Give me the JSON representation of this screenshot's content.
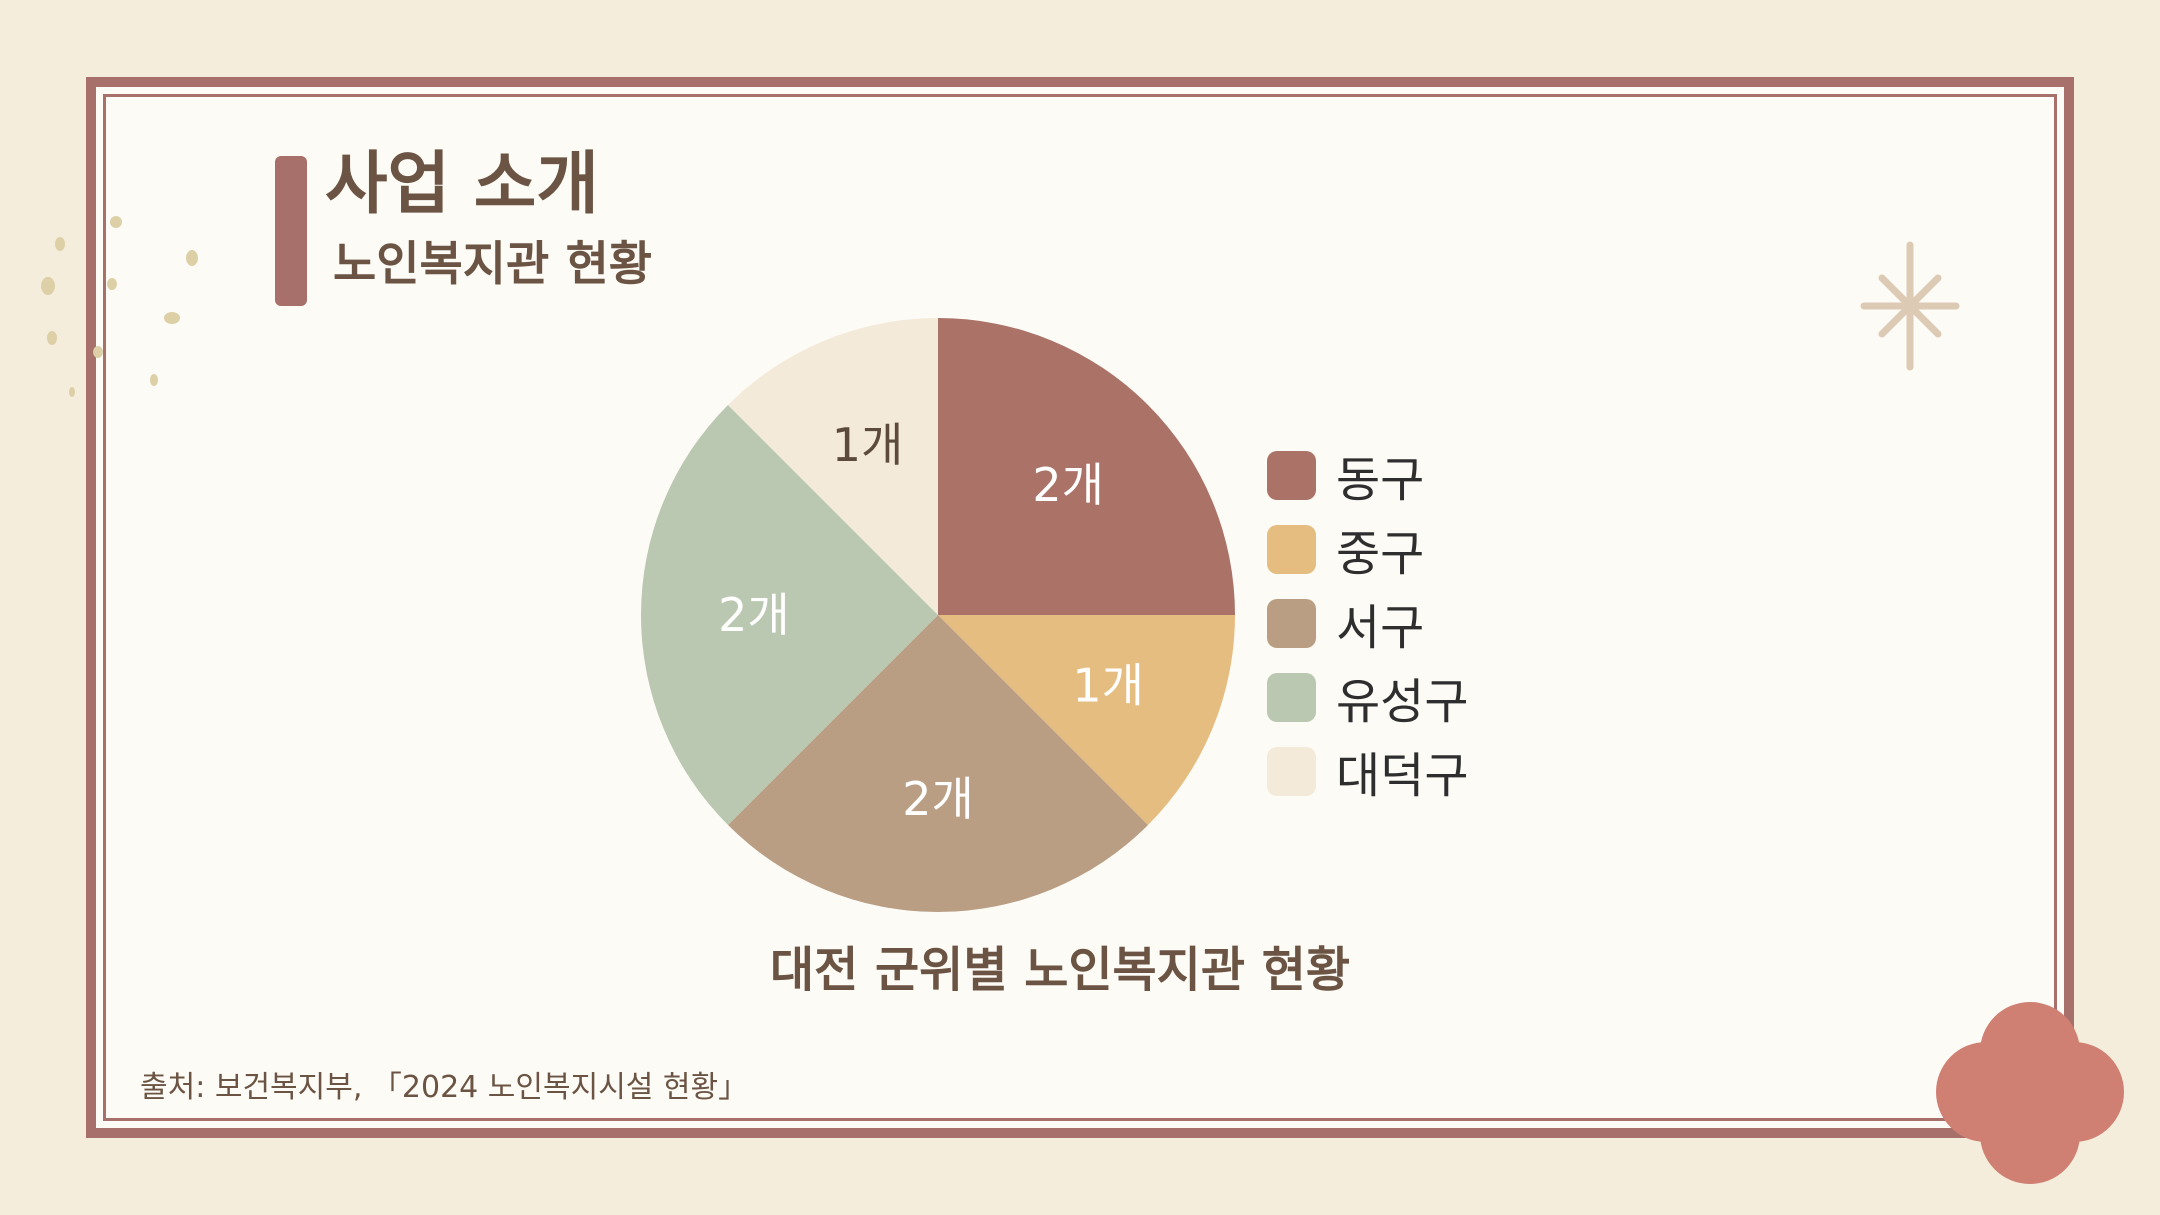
{
  "header": {
    "title": "사업 소개",
    "subtitle": "노인복지관 현황"
  },
  "source_text": "출처: 보건복지부, 「2024 노인복지시설 현황」",
  "colors": {
    "background": "#F5EDDC",
    "card": "#FDFBF6",
    "frame": "#A8706A",
    "text": "#6B5443",
    "flower": "#D08072",
    "sparkle": "#DCCAB4",
    "dots": "#DDCFA6"
  },
  "chart_data": {
    "type": "pie",
    "title": "대전 군위별 노인복지관 현황",
    "unit": "개",
    "legend_position": "right",
    "categories": [
      "동구",
      "중구",
      "서구",
      "유성구",
      "대덕구"
    ],
    "values": [
      2,
      1,
      2,
      2,
      1
    ],
    "data_labels": [
      "2개",
      "1개",
      "2개",
      "2개",
      "1개"
    ],
    "colors": [
      "#AB7268",
      "#E6BD80",
      "#B99E84",
      "#BAC7B1",
      "#F4EADA"
    ],
    "label_colors": [
      "#FFFFFF",
      "#FFFFFF",
      "#FFFFFF",
      "#FFFFFF",
      "#5C4A3C"
    ]
  }
}
